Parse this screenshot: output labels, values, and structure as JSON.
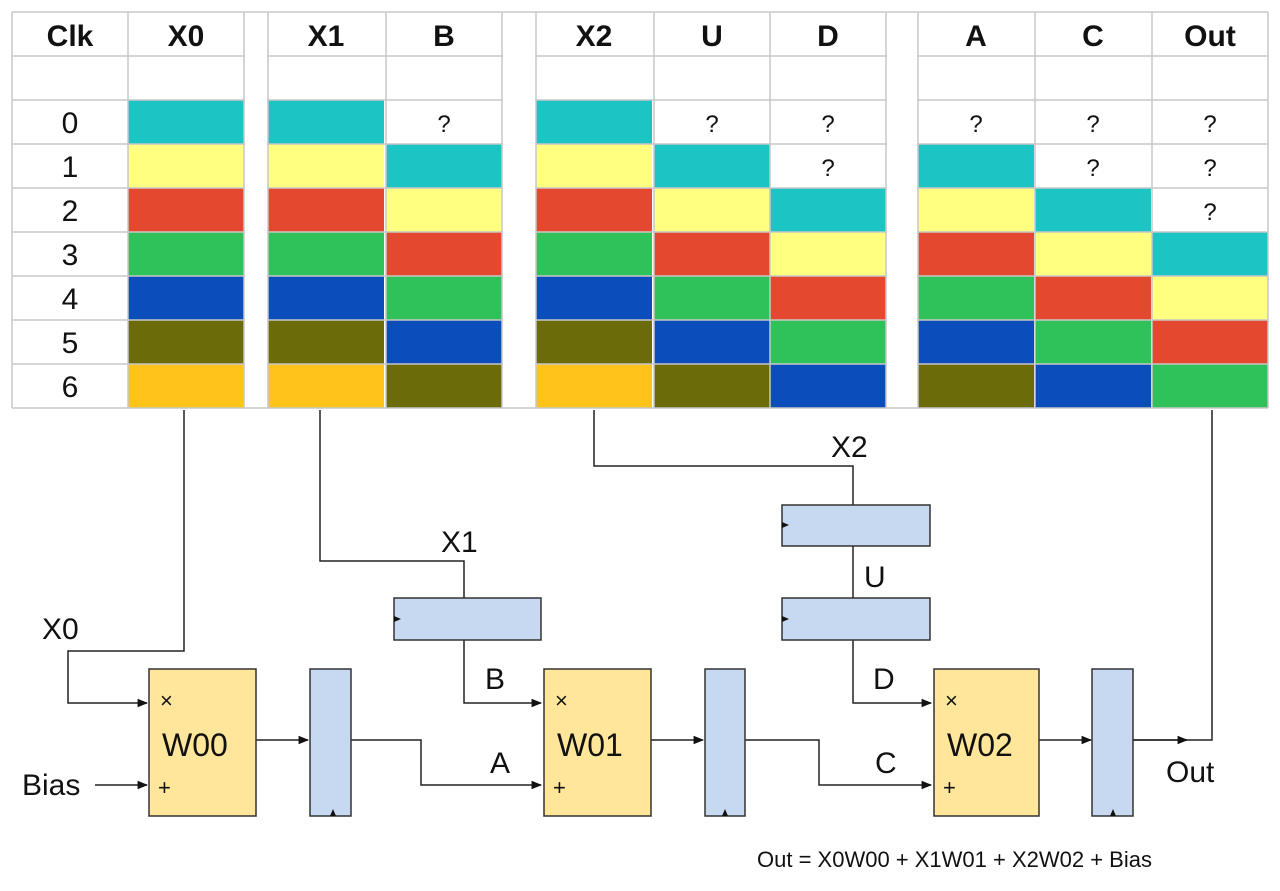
{
  "table": {
    "headers": [
      "Clk",
      "X0",
      "X1",
      "B",
      "X2",
      "U",
      "D",
      "A",
      "C",
      "Out"
    ],
    "clock_values": [
      "0",
      "1",
      "2",
      "3",
      "4",
      "5",
      "6"
    ],
    "unknown_mark": "?",
    "palette": {
      "cyan": "#1cc4c4",
      "yellow": "#ffff80",
      "red": "#e4492f",
      "green": "#2fc15a",
      "blue": "#0b4dbb",
      "olive": "#6b6b0a",
      "orange": "#ffc31a"
    },
    "columns": {
      "X0": [
        "cyan",
        "yellow",
        "red",
        "green",
        "blue",
        "olive",
        "orange"
      ],
      "X1": [
        "cyan",
        "yellow",
        "red",
        "green",
        "blue",
        "olive",
        "orange"
      ],
      "B": [
        "?",
        "cyan",
        "yellow",
        "red",
        "green",
        "blue",
        "olive"
      ],
      "X2": [
        "cyan",
        "yellow",
        "red",
        "green",
        "blue",
        "olive",
        "orange"
      ],
      "U": [
        "?",
        "cyan",
        "yellow",
        "red",
        "green",
        "blue",
        "olive"
      ],
      "D": [
        "?",
        "?",
        "cyan",
        "yellow",
        "red",
        "green",
        "blue"
      ],
      "A": [
        "?",
        "cyan",
        "yellow",
        "red",
        "green",
        "blue",
        "olive"
      ],
      "C": [
        "?",
        "?",
        "cyan",
        "yellow",
        "red",
        "green",
        "blue"
      ],
      "Out": [
        "?",
        "?",
        "?",
        "cyan",
        "yellow",
        "red",
        "green"
      ]
    }
  },
  "diagram": {
    "labels": {
      "x0": "X0",
      "x1": "X1",
      "x2": "X2",
      "u": "U",
      "b": "B",
      "d": "D",
      "a": "A",
      "c": "C",
      "bias": "Bias",
      "out": "Out"
    },
    "pes": [
      {
        "name": "W00",
        "mul": "×",
        "add": "+"
      },
      {
        "name": "W01",
        "mul": "×",
        "add": "+"
      },
      {
        "name": "W02",
        "mul": "×",
        "add": "+"
      }
    ],
    "colors": {
      "register": "#c6d9f1",
      "pe": "#ffe69a"
    },
    "equation": "Out = X0W00 + X1W01 + X2W02 + Bias"
  }
}
